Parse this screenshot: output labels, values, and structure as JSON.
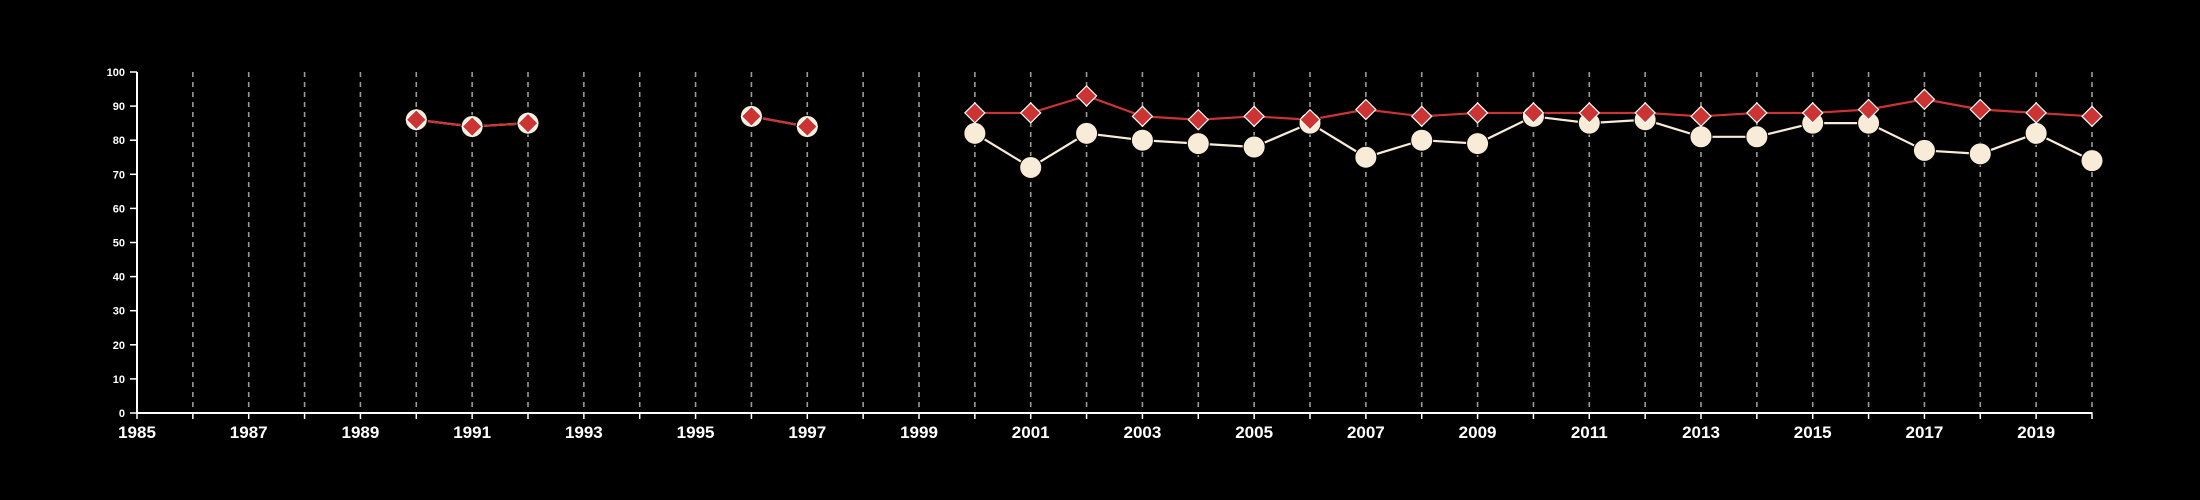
{
  "chart_data": {
    "type": "line",
    "xlim": [
      1985,
      2020
    ],
    "ylim": [
      0,
      100
    ],
    "x_ticks": [
      "1985",
      "1987",
      "1989",
      "1991",
      "1993",
      "1995",
      "1997",
      "1999",
      "2001",
      "2003",
      "2005",
      "2007",
      "2009",
      "2011",
      "2013",
      "2015",
      "2017",
      "2019"
    ],
    "y_ticks": [
      "0",
      "10",
      "20",
      "30",
      "40",
      "50",
      "60",
      "70",
      "80",
      "90",
      "100"
    ],
    "grid": "vertical-dashed",
    "series": [
      {
        "color": "#cc3333",
        "marker": "diamond",
        "points": [
          [
            1990,
            86
          ],
          [
            1991,
            84
          ],
          [
            1992,
            85
          ],
          null,
          [
            1996,
            87
          ],
          [
            1997,
            84
          ],
          null,
          [
            2000,
            88
          ],
          [
            2001,
            88
          ],
          [
            2002,
            93
          ],
          [
            2003,
            87
          ],
          [
            2004,
            86
          ],
          [
            2005,
            87
          ],
          [
            2006,
            86
          ],
          [
            2007,
            89
          ],
          [
            2008,
            87
          ],
          [
            2009,
            88
          ],
          [
            2010,
            88
          ],
          [
            2011,
            88
          ],
          [
            2012,
            88
          ],
          [
            2013,
            87
          ],
          [
            2014,
            88
          ],
          [
            2015,
            88
          ],
          [
            2016,
            89
          ],
          [
            2017,
            92
          ],
          [
            2018,
            89
          ],
          [
            2019,
            88
          ],
          [
            2020,
            87
          ]
        ]
      },
      {
        "color": "#f8ecd8",
        "marker": "circle",
        "points": [
          [
            1990,
            86
          ],
          [
            1991,
            84
          ],
          [
            1992,
            85
          ],
          null,
          [
            1996,
            87
          ],
          [
            1997,
            84
          ],
          null,
          [
            2000,
            82
          ],
          [
            2001,
            72
          ],
          [
            2002,
            82
          ],
          [
            2003,
            80
          ],
          [
            2004,
            79
          ],
          [
            2005,
            78
          ],
          [
            2006,
            85
          ],
          [
            2007,
            75
          ],
          [
            2008,
            80
          ],
          [
            2009,
            79
          ],
          [
            2010,
            87
          ],
          [
            2011,
            85
          ],
          [
            2012,
            86
          ],
          [
            2013,
            81
          ],
          [
            2014,
            81
          ],
          [
            2015,
            85
          ],
          [
            2016,
            85
          ],
          [
            2017,
            77
          ],
          [
            2018,
            76
          ],
          [
            2019,
            82
          ],
          [
            2020,
            74
          ]
        ]
      }
    ]
  }
}
